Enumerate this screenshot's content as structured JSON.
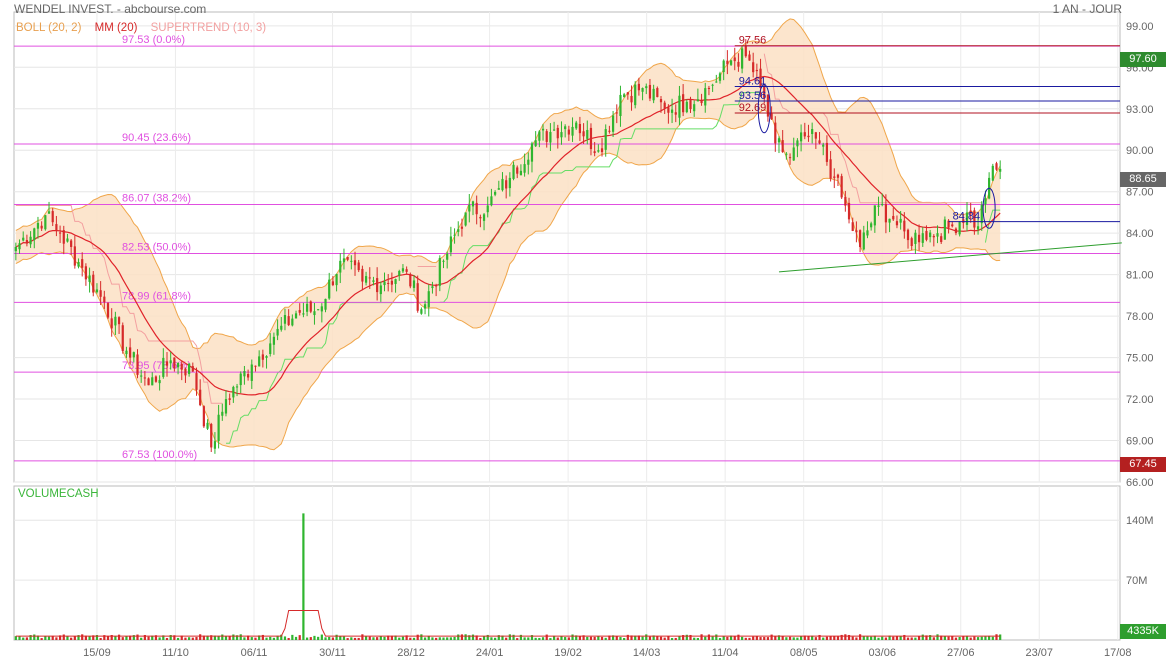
{
  "header": {
    "title": "WENDEL INVEST. - abcbourse.com",
    "period": "1 AN - JOUR"
  },
  "legend": {
    "boll": "BOLL (20, 2)",
    "mm": "MM (20)",
    "supertrend": "SUPERTREND (10, 3)"
  },
  "colors": {
    "up": "#2fb52f",
    "down": "#d62a2a",
    "ma": "#e0232a",
    "boll_band_fill": "#fbe0c4",
    "boll_band_line": "#f0a64a",
    "supertrend_up": "#66dd66",
    "supertrend_down": "#f3a0a0",
    "fib": "#e050e0",
    "volume_label": "#3ab53a",
    "tag_high": "#2e8b2e",
    "tag_low": "#b42020",
    "tag_last": "#666666",
    "trendline": "#2e9e2e",
    "annot_blue": "#1a1aa0",
    "annot_red": "#b01020"
  },
  "chart_data": [
    {
      "type": "candlestick",
      "title": "",
      "ylim": [
        66,
        100
      ],
      "yticks": [
        "66.00",
        "69.00",
        "72.00",
        "75.00",
        "78.00",
        "81.00",
        "84.00",
        "87.00",
        "90.00",
        "93.00",
        "96.00",
        "99.00"
      ],
      "ytick_values": [
        66,
        69,
        72,
        75,
        78,
        81,
        84,
        87,
        90,
        93,
        96,
        99
      ],
      "x_tick_labels": [
        "15/09",
        "11/10",
        "06/11",
        "30/11",
        "28/12",
        "24/01",
        "19/02",
        "14/03",
        "11/04",
        "08/05",
        "03/06",
        "27/06",
        "23/07",
        "17/08"
      ],
      "price_key_points": [
        {
          "session": 0,
          "close": 83.0
        },
        {
          "session": 8,
          "close": 85.3
        },
        {
          "session": 12,
          "close": 84.0
        },
        {
          "session": 18,
          "close": 81.5
        },
        {
          "session": 24,
          "close": 79.0
        },
        {
          "session": 30,
          "close": 75.5
        },
        {
          "session": 36,
          "close": 73.0
        },
        {
          "session": 42,
          "close": 74.8
        },
        {
          "session": 48,
          "close": 74.0
        },
        {
          "session": 53,
          "close": 68.5
        },
        {
          "session": 57,
          "close": 72.0
        },
        {
          "session": 64,
          "close": 74.5
        },
        {
          "session": 70,
          "close": 76.5
        },
        {
          "session": 76,
          "close": 78.2
        },
        {
          "session": 82,
          "close": 78.5
        },
        {
          "session": 88,
          "close": 82.0
        },
        {
          "session": 94,
          "close": 80.5
        },
        {
          "session": 100,
          "close": 80.5
        },
        {
          "session": 106,
          "close": 81.2
        },
        {
          "session": 110,
          "close": 78.5
        },
        {
          "session": 116,
          "close": 82.0
        },
        {
          "session": 122,
          "close": 85.5
        },
        {
          "session": 128,
          "close": 86.0
        },
        {
          "session": 134,
          "close": 88.0
        },
        {
          "session": 140,
          "close": 90.5
        },
        {
          "session": 146,
          "close": 91.5
        },
        {
          "session": 152,
          "close": 92.0
        },
        {
          "session": 158,
          "close": 90.0
        },
        {
          "session": 164,
          "close": 94.0
        },
        {
          "session": 170,
          "close": 94.5
        },
        {
          "session": 176,
          "close": 93.0
        },
        {
          "session": 182,
          "close": 93.5
        },
        {
          "session": 188,
          "close": 94.5
        },
        {
          "session": 194,
          "close": 96.5
        },
        {
          "session": 198,
          "close": 96.8
        },
        {
          "session": 202,
          "close": 94.5
        },
        {
          "session": 206,
          "close": 90.5
        },
        {
          "session": 210,
          "close": 89.5
        },
        {
          "session": 214,
          "close": 91.0
        },
        {
          "session": 218,
          "close": 90.5
        },
        {
          "session": 222,
          "close": 88.0
        },
        {
          "session": 226,
          "close": 85.0
        },
        {
          "session": 229,
          "close": 83.0
        },
        {
          "session": 234,
          "close": 86.0
        },
        {
          "session": 238,
          "close": 85.0
        },
        {
          "session": 242,
          "close": 83.5
        },
        {
          "session": 246,
          "close": 84.0
        },
        {
          "session": 250,
          "close": 84.0
        },
        {
          "session": 254,
          "close": 84.5
        },
        {
          "session": 258,
          "close": 85.5
        },
        {
          "session": 261,
          "close": 84.5
        },
        {
          "session": 264,
          "close": 88.0
        },
        {
          "session": 267,
          "close": 88.65
        }
      ],
      "fibonacci_levels": [
        {
          "label": "97.53  (0.0%)",
          "value": 97.53
        },
        {
          "label": "90.45  (23.6%)",
          "value": 90.45
        },
        {
          "label": "86.07  (38.2%)",
          "value": 86.07
        },
        {
          "label": "82.53  (50.0%)",
          "value": 82.53
        },
        {
          "label": "78.99  (61.8%)",
          "value": 78.99
        },
        {
          "label": "73.95  (78.6%)",
          "value": 73.95
        },
        {
          "label": "67.53  (100.0%)",
          "value": 67.53
        }
      ],
      "annotations": [
        {
          "text": "97.56",
          "value": 97.56,
          "color": "red",
          "line_to_edge": true
        },
        {
          "text": "94.61",
          "value": 94.61,
          "color": "blue"
        },
        {
          "text": "93.56",
          "value": 93.56,
          "color": "blue"
        },
        {
          "text": "92.69",
          "value": 92.69,
          "color": "red"
        },
        {
          "text": "84.84",
          "value": 84.84,
          "color": "blue"
        }
      ],
      "price_tags": [
        {
          "text": "97.60",
          "value": 97.6,
          "kind": "high"
        },
        {
          "text": "88.65",
          "value": 88.65,
          "kind": "last"
        },
        {
          "text": "67.45",
          "value": 67.45,
          "kind": "low"
        }
      ],
      "trendline": {
        "from": {
          "session": 207,
          "value": 81.2
        },
        "to": {
          "session": 300,
          "value": 83.3
        }
      },
      "grid": true
    },
    {
      "type": "bar",
      "title": "VOLUMECASH",
      "ylim": [
        0,
        180
      ],
      "yticks": [
        "70M",
        "140M"
      ],
      "ytick_values": [
        70,
        140
      ],
      "last_value_tag": "4335K",
      "typical_volume_M": 4.5,
      "spike": {
        "session": 78,
        "value_M": 148
      },
      "moving_average_peak_M": 30
    }
  ]
}
